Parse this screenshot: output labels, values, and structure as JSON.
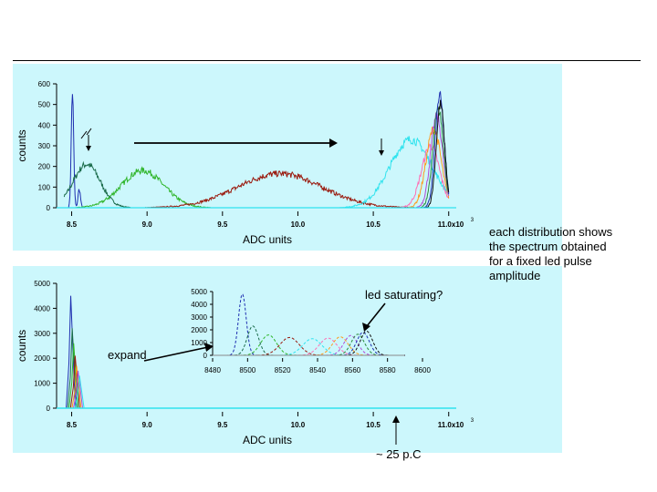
{
  "annotations": {
    "side_note_lines": [
      "each distribution shows",
      "the spectrum obtained",
      "for a fixed led pulse",
      "amplitude"
    ],
    "led_saturating": "led saturating?",
    "expand": "expand",
    "charge": "~ 25 p.C"
  },
  "chart_data": [
    {
      "type": "line",
      "panel": "top",
      "ylabel": "counts",
      "xlabel": "ADC units",
      "x_tick_labels": [
        "8.5",
        "9.0",
        "9.5",
        "10.0",
        "10.5",
        "11.0x10"
      ],
      "x_ticks": [
        8.5,
        9.0,
        9.5,
        10.0,
        10.5,
        11.0
      ],
      "x_exponent": "3",
      "y_ticks": [
        0,
        100,
        200,
        300,
        400,
        500,
        600
      ],
      "xlim": [
        8.4,
        11.05
      ],
      "ylim": [
        0,
        600
      ],
      "series": [
        {
          "color": "#1f2fb0",
          "peaks": [
            {
              "mu": 8.505,
              "sigma": 0.008,
              "amp": 560
            },
            {
              "mu": 8.55,
              "sigma": 0.008,
              "amp": 90
            }
          ]
        },
        {
          "color": "#1a6b4a",
          "peaks": [
            {
              "mu": 8.6,
              "sigma": 0.09,
              "amp": 210
            }
          ]
        },
        {
          "color": "#2fb52a",
          "peaks": [
            {
              "mu": 8.97,
              "sigma": 0.14,
              "amp": 180
            }
          ]
        },
        {
          "color": "#9a1a0e",
          "peaks": [
            {
              "mu": 9.88,
              "sigma": 0.28,
              "amp": 165
            }
          ]
        },
        {
          "color": "#30e3ee",
          "peaks": [
            {
              "mu": 10.75,
              "sigma": 0.14,
              "amp": 330
            }
          ]
        },
        {
          "color": "#ff6fb4",
          "peaks": [
            {
              "mu": 10.88,
              "sigma": 0.06,
              "amp": 300
            }
          ]
        },
        {
          "color": "#ff9a1a",
          "peaks": [
            {
              "mu": 10.9,
              "sigma": 0.05,
              "amp": 380
            }
          ]
        },
        {
          "color": "#b04ad6",
          "peaks": [
            {
              "mu": 10.92,
              "sigma": 0.04,
              "amp": 440
            }
          ]
        },
        {
          "color": "#2a8a3a",
          "peaks": [
            {
              "mu": 10.93,
              "sigma": 0.035,
              "amp": 480
            }
          ]
        },
        {
          "color": "#1f2fb0",
          "peaks": [
            {
              "mu": 10.94,
              "sigma": 0.03,
              "amp": 540
            }
          ]
        },
        {
          "color": "#111111",
          "peaks": [
            {
              "mu": 10.945,
              "sigma": 0.028,
              "amp": 500
            }
          ]
        }
      ]
    },
    {
      "type": "line",
      "panel": "bottom",
      "ylabel": "counts",
      "xlabel": "ADC units",
      "x_tick_labels": [
        "8.5",
        "9.0",
        "9.5",
        "10.0",
        "10.5",
        "11.0x10"
      ],
      "x_ticks": [
        8.5,
        9.0,
        9.5,
        10.0,
        10.5,
        11.0
      ],
      "x_exponent": "3",
      "y_ticks": [
        0,
        1000,
        2000,
        3000,
        4000,
        5000
      ],
      "xlim": [
        8.4,
        11.05
      ],
      "ylim": [
        0,
        5000
      ],
      "series_colors": [
        "#1f2fb0",
        "#1a6b4a",
        "#2fb52a",
        "#9a1a0e",
        "#ff9a1a",
        "#b04ad6",
        "#30e3ee"
      ]
    },
    {
      "type": "line",
      "panel": "inset",
      "x_ticks": [
        8480,
        8500,
        8520,
        8540,
        8560,
        8580,
        8600
      ],
      "y_ticks": [
        0,
        1000,
        2000,
        3000,
        4000,
        5000
      ],
      "xlim": [
        8480,
        8600
      ],
      "ylim": [
        0,
        5000
      ],
      "series": [
        {
          "color": "#1f2fb0",
          "mu": 8497,
          "sigma": 2.2,
          "amp": 4800
        },
        {
          "color": "#1a6b4a",
          "mu": 8503,
          "sigma": 3.2,
          "amp": 2300
        },
        {
          "color": "#2fb52a",
          "mu": 8512,
          "sigma": 4.5,
          "amp": 1600
        },
        {
          "color": "#9a1a0e",
          "mu": 8524,
          "sigma": 5.5,
          "amp": 1400
        },
        {
          "color": "#30e3ee",
          "mu": 8537,
          "sigma": 5.5,
          "amp": 1300
        },
        {
          "color": "#ff6fb4",
          "mu": 8546,
          "sigma": 5.0,
          "amp": 1350
        },
        {
          "color": "#ff9a1a",
          "mu": 8553,
          "sigma": 4.5,
          "amp": 1450
        },
        {
          "color": "#b04ad6",
          "mu": 8559,
          "sigma": 4.0,
          "amp": 1550
        },
        {
          "color": "#2a8a3a",
          "mu": 8563,
          "sigma": 3.8,
          "amp": 1650
        },
        {
          "color": "#1f2fb0",
          "mu": 8566,
          "sigma": 3.6,
          "amp": 1800
        },
        {
          "color": "#111111",
          "mu": 8568,
          "sigma": 3.5,
          "amp": 1900
        }
      ]
    }
  ]
}
